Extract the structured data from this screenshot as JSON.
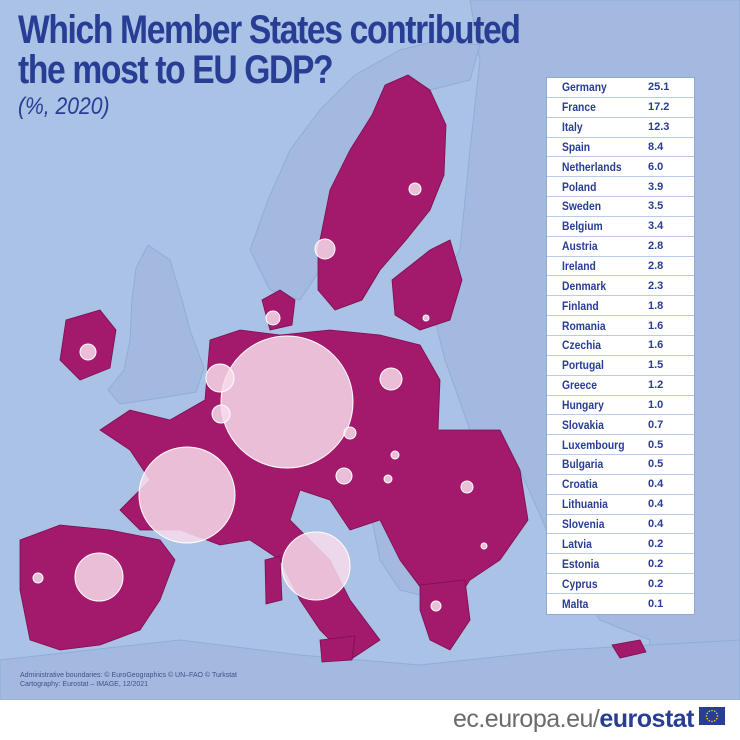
{
  "title_line1": "Which Member States contributed",
  "title_line2": "the most to EU GDP?",
  "subtitle": "(%, 2020)",
  "colors": {
    "sea": "#a9c2e6",
    "member_state": "#a3196b",
    "non_member": "#a3b9df",
    "bubble": "#f8dcea",
    "title": "#283d94"
  },
  "chart_data": {
    "type": "table",
    "title": "Which Member States contributed the most to EU GDP?",
    "unit": "(%, 2020)",
    "rows": [
      {
        "country": "Germany",
        "value": "25.1"
      },
      {
        "country": "France",
        "value": "17.2"
      },
      {
        "country": "Italy",
        "value": "12.3"
      },
      {
        "country": "Spain",
        "value": "8.4"
      },
      {
        "country": "Netherlands",
        "value": "6.0"
      },
      {
        "country": "Poland",
        "value": "3.9"
      },
      {
        "country": "Sweden",
        "value": "3.5"
      },
      {
        "country": "Belgium",
        "value": "3.4"
      },
      {
        "country": "Austria",
        "value": "2.8"
      },
      {
        "country": "Ireland",
        "value": "2.8"
      },
      {
        "country": "Denmark",
        "value": "2.3"
      },
      {
        "country": "Finland",
        "value": "1.8"
      },
      {
        "country": "Romania",
        "value": "1.6"
      },
      {
        "country": "Czechia",
        "value": "1.6"
      },
      {
        "country": "Portugal",
        "value": "1.5"
      },
      {
        "country": "Greece",
        "value": "1.2"
      },
      {
        "country": "Hungary",
        "value": "1.0"
      },
      {
        "country": "Slovakia",
        "value": "0.7"
      },
      {
        "country": "Luxembourg",
        "value": "0.5"
      },
      {
        "country": "Bulgaria",
        "value": "0.5"
      },
      {
        "country": "Croatia",
        "value": "0.4"
      },
      {
        "country": "Lithuania",
        "value": "0.4"
      },
      {
        "country": "Slovenia",
        "value": "0.4"
      },
      {
        "country": "Latvia",
        "value": "0.2"
      },
      {
        "country": "Estonia",
        "value": "0.2"
      },
      {
        "country": "Cyprus",
        "value": "0.2"
      },
      {
        "country": "Malta",
        "value": "0.1"
      }
    ]
  },
  "credits_line1": "Administrative boundaries: © EuroGeographics © UN–FAO © Turkstat",
  "credits_line2": "Cartography: Eurostat – IMAGE, 12/2021",
  "footer_domain": "ec.europa.eu/",
  "footer_brand": "eurostat"
}
